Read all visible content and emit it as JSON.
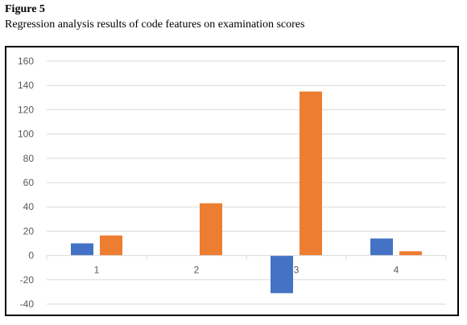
{
  "figure": {
    "label": "Figure 5",
    "caption": "Regression analysis results of code features on examination scores"
  },
  "chart_data": {
    "type": "bar",
    "categories": [
      "1",
      "2",
      "3",
      "4"
    ],
    "series": [
      {
        "values": [
          10,
          0,
          -31,
          14
        ],
        "color": "#4472c4"
      },
      {
        "values": [
          16.5,
          43,
          135,
          3.5
        ],
        "color": "#ed7d31"
      }
    ],
    "ylim": [
      -40,
      160
    ],
    "yticks": [
      160,
      140,
      120,
      100,
      80,
      60,
      40,
      20,
      0,
      -20,
      -40
    ],
    "grid": true,
    "legend": "none",
    "title": "",
    "xlabel": "",
    "ylabel": ""
  }
}
